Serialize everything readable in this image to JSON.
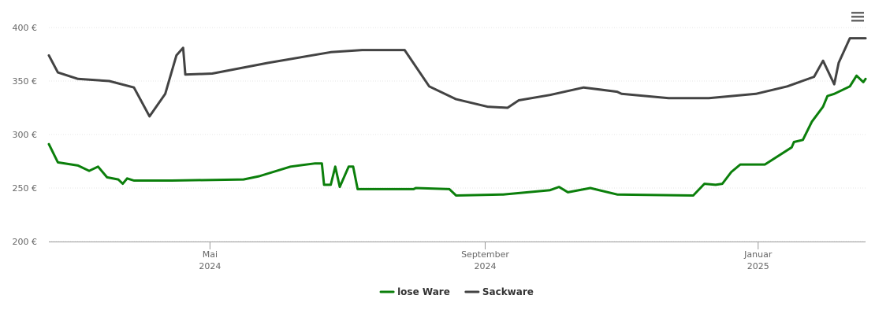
{
  "chart_data": {
    "type": "line",
    "x": [],
    "xlim": [
      "2024-02-19",
      "2025-02-18"
    ],
    "xticks": [
      {
        "value": "2024-05-01",
        "label": "Mai 2024"
      },
      {
        "value": "2024-09-01",
        "label": "September 2024"
      },
      {
        "value": "2025-01-01",
        "label": "Januar 2025"
      }
    ],
    "ylim": [
      200,
      400
    ],
    "yticks": [
      {
        "value": 200,
        "label": "200 €"
      },
      {
        "value": 250,
        "label": "250 €"
      },
      {
        "value": 300,
        "label": "300 €"
      },
      {
        "value": 350,
        "label": "350 €"
      },
      {
        "value": 400,
        "label": "400 €"
      }
    ],
    "grid": true,
    "legend": "bottom",
    "series": [
      {
        "name": "lose Ware",
        "color": "#0b7f0b",
        "x": [
          "2024-02-19",
          "2024-02-23",
          "2024-03-03",
          "2024-03-08",
          "2024-03-12",
          "2024-03-16",
          "2024-03-21",
          "2024-03-23",
          "2024-03-25",
          "2024-03-28",
          "2024-04-14",
          "2024-05-16",
          "2024-05-23",
          "2024-06-06",
          "2024-06-17",
          "2024-06-20",
          "2024-06-21",
          "2024-06-24",
          "2024-06-26",
          "2024-06-28",
          "2024-07-02",
          "2024-07-04",
          "2024-07-06",
          "2024-07-31",
          "2024-08-01",
          "2024-08-16",
          "2024-08-19",
          "2024-09-09",
          "2024-09-30",
          "2024-10-04",
          "2024-10-08",
          "2024-10-18",
          "2024-10-30",
          "2024-12-03",
          "2024-12-08",
          "2024-12-13",
          "2024-12-16",
          "2024-12-20",
          "2024-12-24",
          "2025-01-04",
          "2025-01-16",
          "2025-01-17",
          "2025-01-21",
          "2025-01-25",
          "2025-01-30",
          "2025-02-01",
          "2025-02-04",
          "2025-02-11",
          "2025-02-14",
          "2025-02-17",
          "2025-02-18"
        ],
        "values": [
          291,
          274,
          271,
          266,
          270,
          260,
          258,
          254,
          259,
          257,
          257,
          258,
          261,
          270,
          273,
          273,
          253,
          253,
          270,
          251,
          270,
          270,
          249,
          249,
          250,
          249,
          243,
          244,
          248,
          251,
          246,
          250,
          244,
          243,
          254,
          253,
          254,
          265,
          272,
          272,
          288,
          293,
          295,
          312,
          326,
          336,
          338,
          345,
          355,
          349,
          352
        ]
      },
      {
        "name": "Sackware",
        "color": "#434343",
        "x": [
          "2024-02-19",
          "2024-02-23",
          "2024-03-03",
          "2024-03-17",
          "2024-03-28",
          "2024-04-04",
          "2024-04-11",
          "2024-04-16",
          "2024-04-19",
          "2024-04-20",
          "2024-05-02",
          "2024-05-27",
          "2024-06-24",
          "2024-07-08",
          "2024-07-27",
          "2024-08-07",
          "2024-08-19",
          "2024-09-02",
          "2024-09-11",
          "2024-09-16",
          "2024-09-30",
          "2024-10-15",
          "2024-10-30",
          "2024-11-01",
          "2024-11-22",
          "2024-12-10",
          "2024-12-31",
          "2025-01-14",
          "2025-01-26",
          "2025-01-30",
          "2025-02-04",
          "2025-02-06",
          "2025-02-11",
          "2025-02-18"
        ],
        "values": [
          374,
          358,
          352,
          350,
          344,
          317,
          338,
          374,
          381,
          356,
          357,
          367,
          377,
          379,
          379,
          345,
          333,
          326,
          325,
          332,
          337,
          344,
          340,
          338,
          334,
          334,
          338,
          345,
          354,
          369,
          347,
          367,
          390,
          390
        ]
      }
    ]
  }
}
